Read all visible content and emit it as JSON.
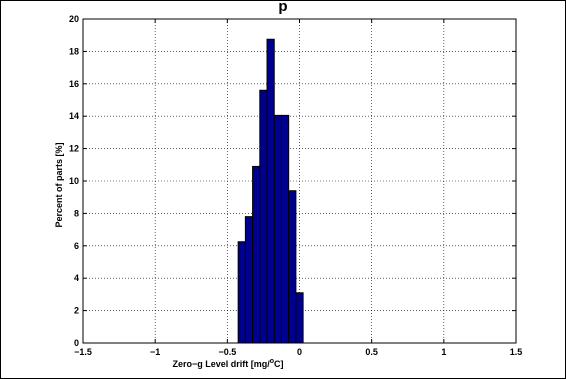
{
  "chart_data": {
    "type": "bar",
    "title": "p",
    "xlabel": "Zero−g Level drift [mg/",
    "xlabel_sup": "o",
    "xlabel_tail": "C]",
    "ylabel": "Percent of parts [%]",
    "xlim": [
      -1.5,
      1.5
    ],
    "ylim": [
      0,
      20
    ],
    "xticks": [
      -1.5,
      -1,
      -0.5,
      0,
      0.5,
      1,
      1.5
    ],
    "xtick_labels": [
      "−1.5",
      "−1",
      "−0.5",
      "0",
      "0.5",
      "1",
      "1.5"
    ],
    "yticks": [
      0,
      2,
      4,
      6,
      8,
      10,
      12,
      14,
      16,
      18,
      20
    ],
    "ytick_labels": [
      "0",
      "2",
      "4",
      "6",
      "8",
      "10",
      "12",
      "14",
      "16",
      "18",
      "20"
    ],
    "bin_width": 0.05,
    "x": [
      -0.4,
      -0.35,
      -0.3,
      -0.25,
      -0.2,
      -0.15,
      -0.1,
      -0.05,
      0.0,
      0.05,
      0.1
    ],
    "values": [
      6.25,
      7.8,
      10.9,
      15.6,
      18.75,
      14.05,
      14.05,
      9.4,
      3.1,
      0,
      0
    ],
    "grid": true,
    "bar_color": "#00008F"
  }
}
